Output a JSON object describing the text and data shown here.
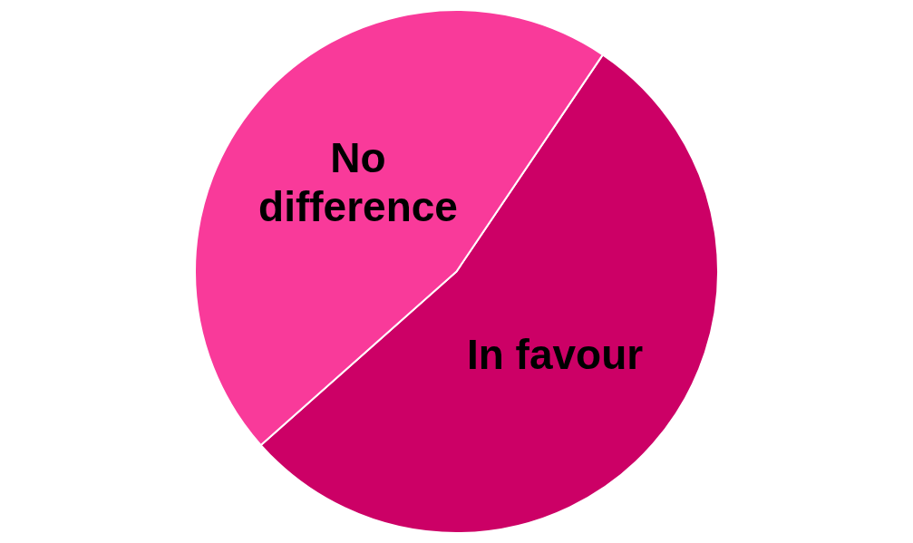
{
  "chart_data": {
    "type": "pie",
    "categories": [
      "In favour",
      "No difference"
    ],
    "values": [
      54,
      46
    ],
    "colors": [
      "#cc0066",
      "#f93a9a"
    ],
    "legend": false
  }
}
